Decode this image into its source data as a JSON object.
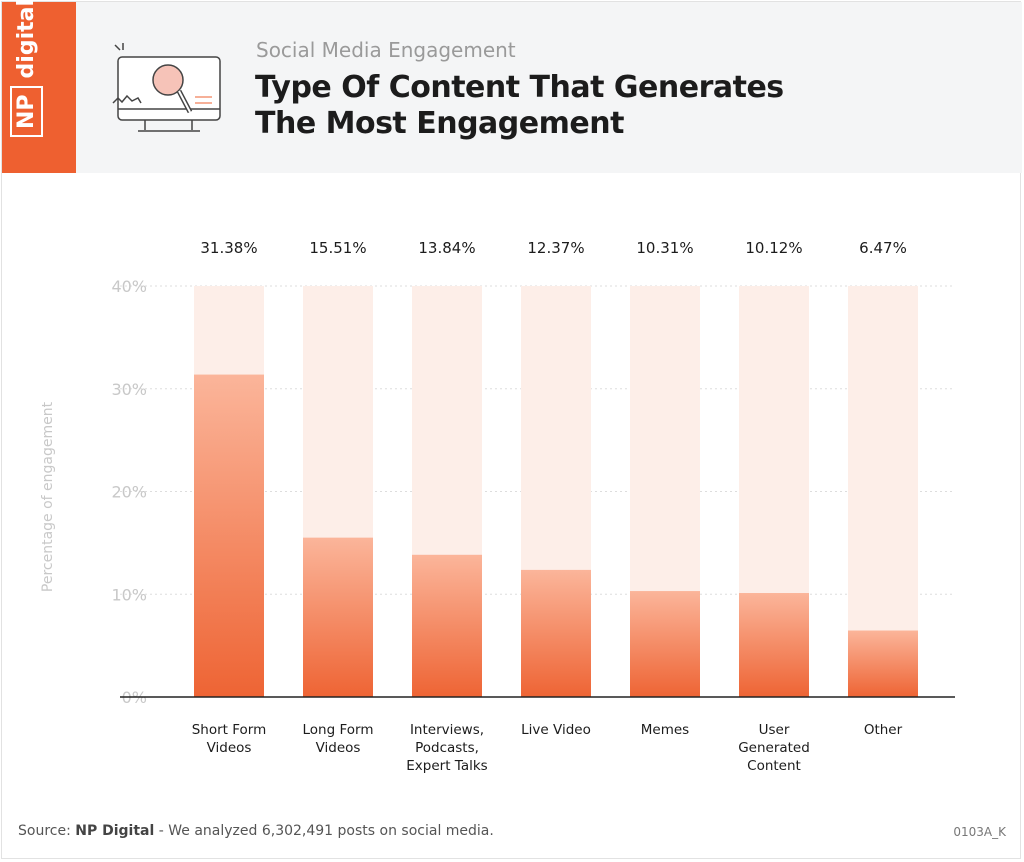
{
  "header": {
    "brand": "NP digital",
    "brand_np": "NP",
    "brand_word": "digital",
    "subtitle": "Social Media Engagement",
    "title_line1": "Type Of Content That Generates",
    "title_line2": "The Most Engagement"
  },
  "footer": {
    "source_label": "Source:",
    "source_org": "NP Digital",
    "source_text": "- We analyzed 6,302,491 posts on social media.",
    "code": "0103A_K"
  },
  "colors": {
    "brand": "#ee6030",
    "bar_top": "#fbb59a",
    "bar_bottom": "#ee6434",
    "bar_track": "#fdeee8"
  },
  "chart_data": {
    "type": "bar",
    "title": "Type Of Content That Generates The Most Engagement",
    "ylabel": "Percentage of engagement",
    "ylim": [
      0,
      40
    ],
    "yticks": [
      "0%",
      "10%",
      "20%",
      "30%",
      "40%"
    ],
    "grid": true,
    "categories": [
      [
        "Short Form",
        "Videos"
      ],
      [
        "Long Form",
        "Videos"
      ],
      [
        "Interviews,",
        "Podcasts,",
        "Expert Talks"
      ],
      [
        "Live Video"
      ],
      [
        "Memes"
      ],
      [
        "User",
        "Generated",
        "Content"
      ],
      [
        "Other"
      ]
    ],
    "values": [
      31.38,
      15.51,
      13.84,
      12.37,
      10.31,
      10.12,
      6.47
    ],
    "data_labels": [
      "31.38%",
      "15.51%",
      "13.84%",
      "12.37%",
      "10.31%",
      "10.12%",
      "6.47%"
    ]
  }
}
